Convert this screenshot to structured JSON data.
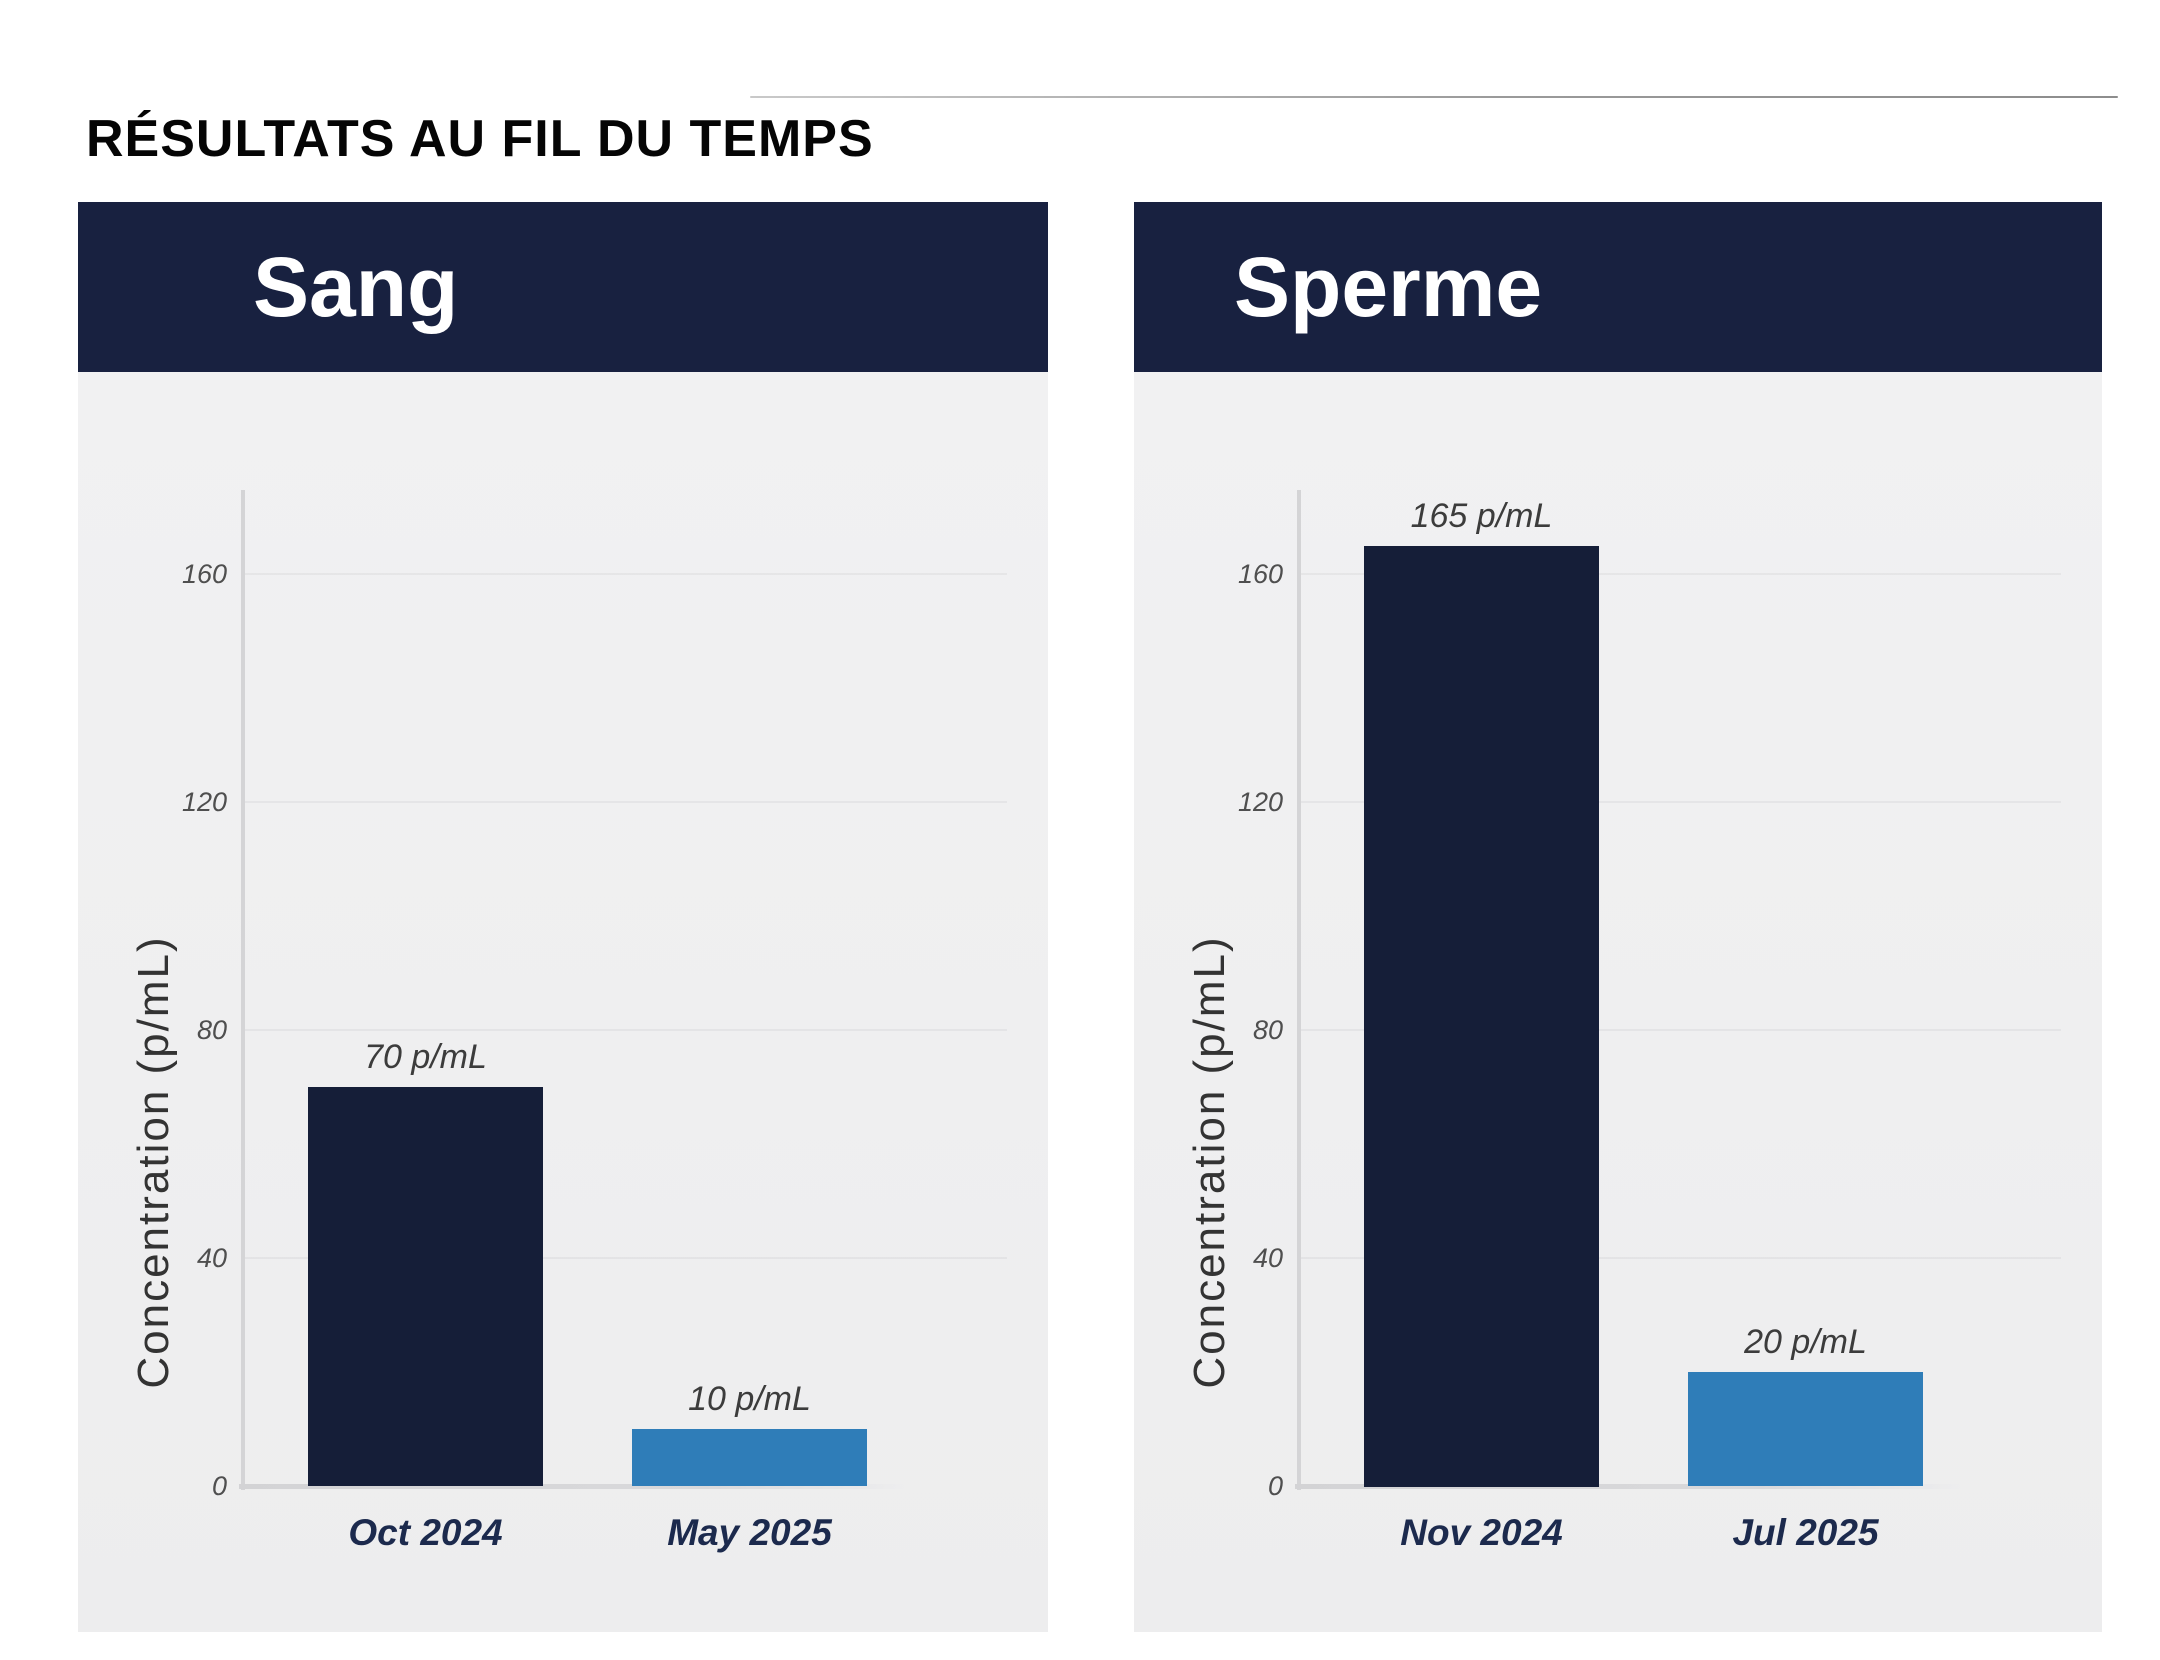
{
  "page": {
    "title": "RÉSULTATS AU FIL DU TEMPS"
  },
  "colors": {
    "page_bg": "#ffffff",
    "panel_bg": "#efeff0",
    "header_navy": "#182140",
    "bar_navy": "#151e38",
    "bar_blue": "#2f7db8",
    "axis_line": "#d4d4d6",
    "grid_line": "#e4e4e6",
    "divider_line": "#9a9a9a",
    "tick_text": "#4f4f4f",
    "value_text": "#3c3c3c",
    "category_text": "#1c2a4d",
    "header_text": "#ffffff",
    "title_text": "#050505"
  },
  "chart_data": [
    {
      "type": "bar",
      "title": "Sang",
      "ylabel": "Concentration (p/mL)",
      "categories": [
        "Oct 2024",
        "May 2025"
      ],
      "values": [
        70,
        10
      ],
      "value_labels": [
        "70 p/mL",
        "10 p/mL"
      ],
      "bar_colors": [
        "navy",
        "blue"
      ],
      "yticks": [
        0,
        40,
        80,
        120,
        160
      ],
      "ylim": [
        0,
        175
      ],
      "grid": true,
      "legend": false
    },
    {
      "type": "bar",
      "title": "Sperme",
      "ylabel": "Concentration (p/mL)",
      "categories": [
        "Nov 2024",
        "Jul 2025"
      ],
      "values": [
        165,
        20
      ],
      "value_labels": [
        "165 p/mL",
        "20 p/mL"
      ],
      "bar_colors": [
        "navy",
        "blue"
      ],
      "yticks": [
        0,
        40,
        80,
        120,
        160
      ],
      "ylim": [
        0,
        175
      ],
      "grid": true,
      "legend": false
    }
  ]
}
